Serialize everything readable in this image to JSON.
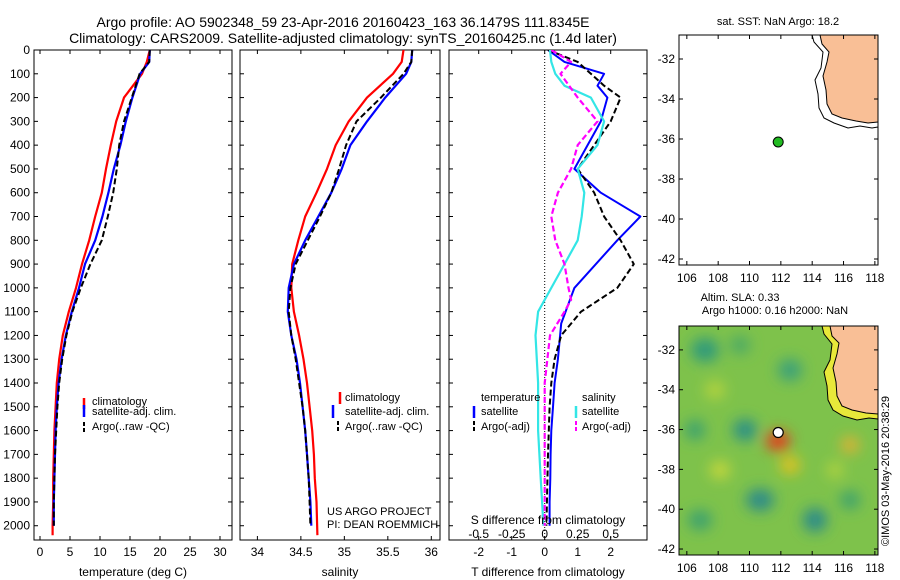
{
  "header": {
    "line1": "Argo profile: AO 5902348_59 23-Apr-2016 20160423_163 36.1479S 111.8345E",
    "line2": "Climatology: CARS2009. Satellite-adjusted climatology: synTS_20160425.nc (1.4d later)"
  },
  "credit": {
    "project": "US ARGO PROJECT",
    "pi": "PI: DEAN ROEMMICH",
    "stamp": "©IMOS 03-May-2016 20:38:29"
  },
  "colors": {
    "climatology": "#ff0000",
    "satellite": "#0000ff",
    "argo": "#000000",
    "sat_s": "#33e6e6",
    "argo_s": "#ff00ff",
    "land": "#f9bf96",
    "marker": "#22bb22"
  },
  "chart_data": [
    {
      "type": "line",
      "id": "temperature",
      "xlabel": "temperature (deg C)",
      "ylabel": "",
      "xlim": [
        -1,
        32
      ],
      "ylim": [
        0,
        2060
      ],
      "xticks": [
        0,
        5,
        10,
        15,
        20,
        25,
        30
      ],
      "yticks": [
        0,
        100,
        200,
        300,
        400,
        500,
        600,
        700,
        800,
        900,
        1000,
        1100,
        1200,
        1300,
        1400,
        1500,
        1600,
        1700,
        1800,
        1900,
        2000
      ],
      "legend": [
        "climatology",
        "satellite-adj. clim.",
        "Argo(..raw -QC)"
      ],
      "legend_position": "center",
      "series": [
        {
          "name": "climatology",
          "x": [
            18.3,
            17.8,
            17.0,
            14.0,
            12.7,
            11.8,
            11.0,
            10.3,
            9.2,
            8.2,
            7.0,
            6.0,
            4.8,
            3.8,
            3.2,
            2.8,
            2.6,
            2.4,
            2.3,
            2.2,
            2.2,
            2.1,
            2.1
          ],
          "y": [
            0,
            50,
            100,
            200,
            300,
            400,
            500,
            600,
            700,
            800,
            900,
            1000,
            1100,
            1200,
            1300,
            1400,
            1500,
            1600,
            1700,
            1800,
            1900,
            2000,
            2040
          ]
        },
        {
          "name": "satellite-adj. clim.",
          "x": [
            18.3,
            18.2,
            16.7,
            15.4,
            14.3,
            13.4,
            12.3,
            11.4,
            10.4,
            9.2,
            7.5,
            6.5,
            5.3,
            4.3,
            3.6,
            3.1,
            2.8,
            2.6,
            2.5,
            2.4,
            2.3,
            2.3
          ],
          "y": [
            0,
            50,
            100,
            200,
            300,
            400,
            500,
            600,
            700,
            800,
            900,
            1000,
            1100,
            1200,
            1300,
            1400,
            1500,
            1600,
            1700,
            1800,
            1900,
            2000
          ]
        },
        {
          "name": "Argo(..raw -QC)",
          "x": [
            18.3,
            18.2,
            16.6,
            15.3,
            14.0,
            13.2,
            12.8,
            12.2,
            11.3,
            10.3,
            8.4,
            6.8,
            5.4,
            4.4,
            3.7,
            3.2,
            2.9,
            2.7,
            2.5,
            2.4,
            2.3,
            2.3
          ],
          "y": [
            0,
            50,
            100,
            200,
            300,
            400,
            500,
            600,
            700,
            800,
            900,
            1000,
            1100,
            1200,
            1300,
            1400,
            1500,
            1600,
            1700,
            1800,
            1900,
            2000
          ]
        }
      ]
    },
    {
      "type": "line",
      "id": "salinity",
      "xlabel": "salinity",
      "ylabel": "",
      "xlim": [
        33.8,
        36.1
      ],
      "ylim": [
        0,
        2060
      ],
      "xticks": [
        34,
        34.5,
        35,
        35.5,
        36
      ],
      "legend": [
        "climatology",
        "satellite-adj. clim.",
        "Argo(..raw -QC)"
      ],
      "legend_position": "center",
      "series": [
        {
          "name": "climatology",
          "x": [
            35.68,
            35.66,
            35.56,
            35.26,
            35.05,
            34.9,
            34.8,
            34.68,
            34.55,
            34.47,
            34.4,
            34.39,
            34.42,
            34.48,
            34.53,
            34.57,
            34.6,
            34.63,
            34.65,
            34.66,
            34.68,
            34.69
          ],
          "y": [
            0,
            50,
            100,
            200,
            300,
            400,
            500,
            600,
            700,
            800,
            900,
            1000,
            1100,
            1200,
            1300,
            1400,
            1500,
            1600,
            1700,
            1800,
            1900,
            2040
          ]
        },
        {
          "name": "satellite-adj. clim.",
          "x": [
            35.78,
            35.77,
            35.71,
            35.47,
            35.26,
            35.07,
            34.97,
            34.85,
            34.7,
            34.55,
            34.42,
            34.36,
            34.35,
            34.39,
            34.45,
            34.49,
            34.52,
            34.55,
            34.57,
            34.59,
            34.61,
            34.62
          ],
          "y": [
            0,
            50,
            100,
            200,
            300,
            400,
            500,
            600,
            700,
            800,
            900,
            1000,
            1100,
            1200,
            1300,
            1400,
            1500,
            1600,
            1700,
            1800,
            1900,
            2000
          ]
        },
        {
          "name": "Argo(..raw -QC)",
          "x": [
            35.78,
            35.77,
            35.68,
            35.42,
            35.14,
            35.02,
            34.94,
            34.85,
            34.72,
            34.58,
            34.44,
            34.38,
            34.36,
            34.39,
            34.44,
            34.48,
            34.52,
            34.55,
            34.57,
            34.59,
            34.6,
            34.61
          ],
          "y": [
            0,
            50,
            100,
            200,
            300,
            400,
            500,
            600,
            700,
            800,
            900,
            1000,
            1100,
            1200,
            1300,
            1400,
            1500,
            1600,
            1700,
            1800,
            1900,
            2000
          ]
        }
      ]
    },
    {
      "type": "line",
      "id": "differences",
      "xlabel": "T difference from climatology",
      "xlabel_top": "S difference from climatology",
      "xlim": [
        -2.9,
        3.1
      ],
      "ylim": [
        0,
        2060
      ],
      "xticks": [
        -2,
        -1,
        0,
        1,
        2
      ],
      "xticklabels": [
        "-2",
        "-1",
        "0",
        "1",
        "2"
      ],
      "s_ticks": [
        -0.5,
        -0.25,
        0,
        0.25,
        0.5
      ],
      "s_ticklabels": [
        "-0.5",
        "-0.25",
        "0",
        "0.25",
        "0.5"
      ],
      "legend_temperature": {
        "heading": "temperature",
        "items": [
          "satellite",
          "Argo(-adj)"
        ]
      },
      "legend_salinity": {
        "heading": "salinity",
        "items": [
          "satellite",
          "Argo(-adj)"
        ]
      },
      "series": [
        {
          "name": "T satellite",
          "x": [
            0.1,
            0.6,
            1.8,
            1.6,
            1.9,
            1.7,
            1.3,
            0.9,
            1.7,
            2.9,
            2.2,
            0.9,
            0.5,
            0.4,
            0.3,
            0.25,
            0.2,
            0.18,
            0.17,
            0.15,
            0.15
          ],
          "y": [
            0,
            50,
            100,
            150,
            200,
            300,
            400,
            500,
            600,
            700,
            800,
            1000,
            1150,
            1300,
            1400,
            1500,
            1600,
            1700,
            1800,
            1900,
            2000
          ]
        },
        {
          "name": "T Argo(-adj)",
          "x": [
            0.1,
            1.0,
            1.4,
            1.8,
            2.3,
            2.0,
            1.5,
            1.0,
            1.5,
            1.8,
            2.3,
            2.7,
            2.2,
            1.1,
            0.5,
            0.3,
            0.2,
            0.15,
            0.1,
            0.05
          ],
          "y": [
            0,
            50,
            100,
            150,
            200,
            300,
            400,
            500,
            600,
            700,
            800,
            900,
            1000,
            1100,
            1200,
            1300,
            1400,
            1500,
            1700,
            2000
          ]
        },
        {
          "name": "S satellite",
          "x": [
            0.04,
            0.05,
            0.08,
            0.15,
            0.35,
            0.45,
            0.4,
            0.25,
            0.3,
            0.28,
            0.25,
            0.15,
            0.05,
            -0.05,
            -0.07,
            -0.05,
            -0.05,
            -0.03,
            -0.02,
            -0.01
          ],
          "y": [
            0,
            50,
            100,
            150,
            200,
            300,
            400,
            500,
            600,
            700,
            800,
            900,
            1000,
            1100,
            1200,
            1400,
            1600,
            1800,
            1900,
            2000
          ]
        },
        {
          "name": "S Argo(-adj)",
          "x": [
            0.05,
            0.2,
            0.12,
            0.25,
            0.4,
            0.25,
            0.2,
            0.1,
            0.05,
            0.08,
            0.15,
            0.18,
            0.2,
            0.15,
            0.04,
            0.0,
            0.0,
            0.0,
            0.0
          ],
          "y": [
            0,
            50,
            100,
            200,
            300,
            400,
            500,
            600,
            700,
            800,
            900,
            1000,
            1050,
            1100,
            1200,
            1400,
            1600,
            1800,
            2000
          ]
        }
      ]
    },
    {
      "type": "scatter",
      "id": "sst_map",
      "title": "sat. SST: NaN Argo: 18.2",
      "xlim": [
        105.5,
        118.2
      ],
      "ylim": [
        -42.3,
        -30.8
      ],
      "xticks": [
        106,
        108,
        110,
        112,
        114,
        116,
        118
      ],
      "yticks": [
        -32,
        -34,
        -36,
        -38,
        -40,
        -42
      ],
      "point": {
        "lon": 111.83,
        "lat": -36.15
      }
    },
    {
      "type": "heatmap",
      "id": "sla_map",
      "title_line1": "Altim. SLA: 0.33",
      "title_line2": "Argo h1000: 0.16 h2000: NaN",
      "xlim": [
        105.5,
        118.2
      ],
      "ylim": [
        -42.3,
        -30.8
      ],
      "xticks": [
        106,
        108,
        110,
        112,
        114,
        116,
        118
      ],
      "yticks": [
        -32,
        -34,
        -36,
        -38,
        -40,
        -42
      ],
      "point": {
        "lon": 111.83,
        "lat": -36.15
      }
    }
  ]
}
